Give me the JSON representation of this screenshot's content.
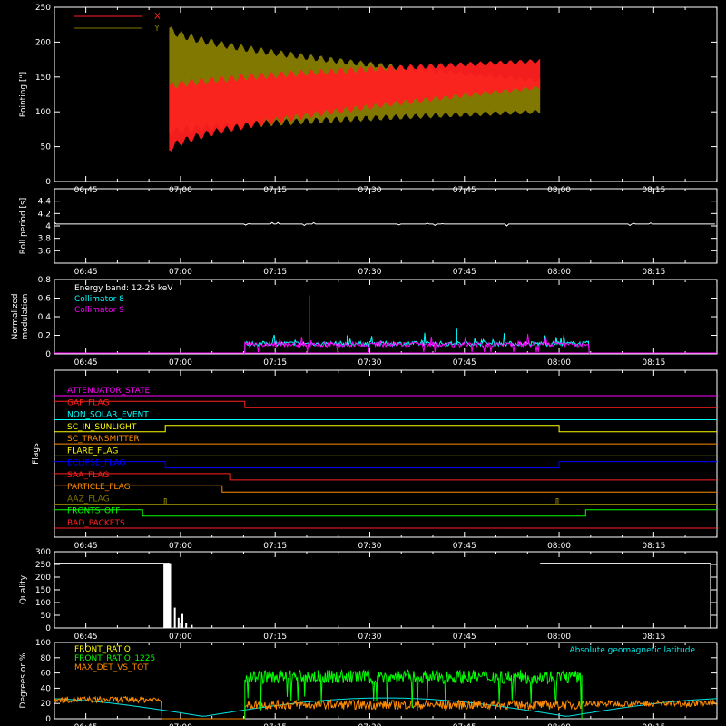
{
  "chart_data": [
    {
      "type": "line",
      "ylabel": "Pointing [\"]",
      "ylim": [
        0,
        250
      ],
      "yticks": [
        0,
        50,
        100,
        150,
        200,
        250
      ],
      "series": [
        {
          "name": "X",
          "color": "#ff2020",
          "kind": "band",
          "start": 6.97,
          "end": 7.95,
          "low_start": 45,
          "high_start": 135,
          "low_end": 135,
          "high_end": 173
        },
        {
          "name": "Y",
          "color": "#807800",
          "kind": "band",
          "start": 6.97,
          "end": 7.95,
          "low_start": 70,
          "high_start": 220,
          "low_end": 100,
          "high_end": 145
        }
      ],
      "reference_line": 127,
      "legend": "top-left"
    },
    {
      "type": "line",
      "ylabel": "Roll period [s]",
      "ylim": [
        3.4,
        4.6
      ],
      "yticks": [
        3.6,
        3.8,
        4.0,
        4.2,
        4.4
      ],
      "series": [
        {
          "name": "",
          "color": "#ffffff",
          "value": 4.03
        }
      ]
    },
    {
      "type": "line",
      "ylabel_lines": [
        "Normalized",
        "modulation"
      ],
      "ylim": [
        0,
        0.8
      ],
      "yticks": [
        0.0,
        0.2,
        0.4,
        0.6,
        0.8
      ],
      "annotation": "Energy band: 12-25 keV",
      "series": [
        {
          "name": "Collimator 8",
          "color": "#00ffff",
          "start": 7.17,
          "end": 8.08,
          "base": 0.1
        },
        {
          "name": "Collimator 9",
          "color": "#ff00ff",
          "start": 7.17,
          "end": 8.08,
          "base": 0.09
        }
      ],
      "spikes": [
        {
          "x": 7.34,
          "y": 0.63,
          "series": 0
        },
        {
          "x": 7.73,
          "y": 0.28,
          "series": 0
        },
        {
          "x": 7.44,
          "y": 0.2,
          "series": 0
        }
      ],
      "legend": "top-left"
    },
    {
      "type": "line",
      "ylabel": "Flags",
      "flags": [
        {
          "name": "ATTENUATOR_STATE",
          "color": "#ff00ff",
          "transitions": []
        },
        {
          "name": "GAP_FLAG",
          "color": "#ff2020",
          "transitions": [
            [
              7.17,
              -1
            ]
          ],
          "initial": 1
        },
        {
          "name": "NON_SOLAR_EVENT",
          "color": "#00ffff",
          "transitions": []
        },
        {
          "name": "SC_IN_SUNLIGHT",
          "color": "#ffff00",
          "transitions": [
            [
              6.96,
              1
            ],
            [
              8.0,
              -1
            ]
          ],
          "initial": 0
        },
        {
          "name": "SC_TRANSMITTER",
          "color": "#ff8c00",
          "transitions": []
        },
        {
          "name": "FLARE_FLAG",
          "color": "#ffff00",
          "transitions": []
        },
        {
          "name": "ECLIPSE_FLAG",
          "color": "#0000ff",
          "transitions": [
            [
              6.96,
              -1
            ],
            [
              8.0,
              1
            ]
          ],
          "initial": 1
        },
        {
          "name": "SAA_FLAG",
          "color": "#ff2020",
          "transitions": [
            [
              7.13,
              -1
            ]
          ],
          "initial": 1
        },
        {
          "name": "PARTICLE_FLAG",
          "color": "#ff8c00",
          "transitions": [
            [
              7.11,
              -1
            ]
          ],
          "initial": 1
        },
        {
          "name": "AAZ_FLAG",
          "color": "#807800",
          "transitions": [],
          "pulses": [
            6.96,
            7.995
          ]
        },
        {
          "name": "FRONTS_OFF",
          "color": "#00ff00",
          "transitions": [
            [
              6.9,
              -1
            ],
            [
              8.07,
              1
            ]
          ],
          "initial": 1
        },
        {
          "name": "BAD_PACKETS",
          "color": "#ff2020",
          "transitions": []
        }
      ]
    },
    {
      "type": "bar",
      "ylabel": "Quality",
      "ylim": [
        0,
        300
      ],
      "yticks": [
        0,
        50,
        100,
        150,
        200,
        250,
        300
      ],
      "series": [
        {
          "name": "",
          "color": "#ffffff",
          "segments": [
            [
              6.5,
              6.97,
              255
            ],
            [
              7.95,
              8.4,
              255
            ]
          ]
        }
      ]
    },
    {
      "type": "line",
      "ylabel": "Degrees or %",
      "ylim": [
        0,
        100
      ],
      "yticks": [
        0,
        20,
        40,
        60,
        80,
        100
      ],
      "series": [
        {
          "name": "FRONT_RATIO",
          "color": "#ffff00"
        },
        {
          "name": "FRONT_RATIO_1225",
          "color": "#00ff00",
          "start": 7.17,
          "end": 8.06,
          "base": 55
        },
        {
          "name": "MAX_DET_VS_TOT",
          "color": "#ff8c00",
          "base": 17
        },
        {
          "name": "Absolute geomagnetic latitude",
          "color": "#00e5e5"
        }
      ],
      "legend": "top-left"
    }
  ],
  "x_axis": {
    "xlim_hours": [
      6.667,
      8.417
    ],
    "tick_hours": [
      6.75,
      7.0,
      7.25,
      7.5,
      7.75,
      8.0,
      8.25
    ],
    "tick_labels": [
      "06:45",
      "07:00",
      "07:15",
      "07:30",
      "07:45",
      "08:00",
      "08:15"
    ]
  }
}
